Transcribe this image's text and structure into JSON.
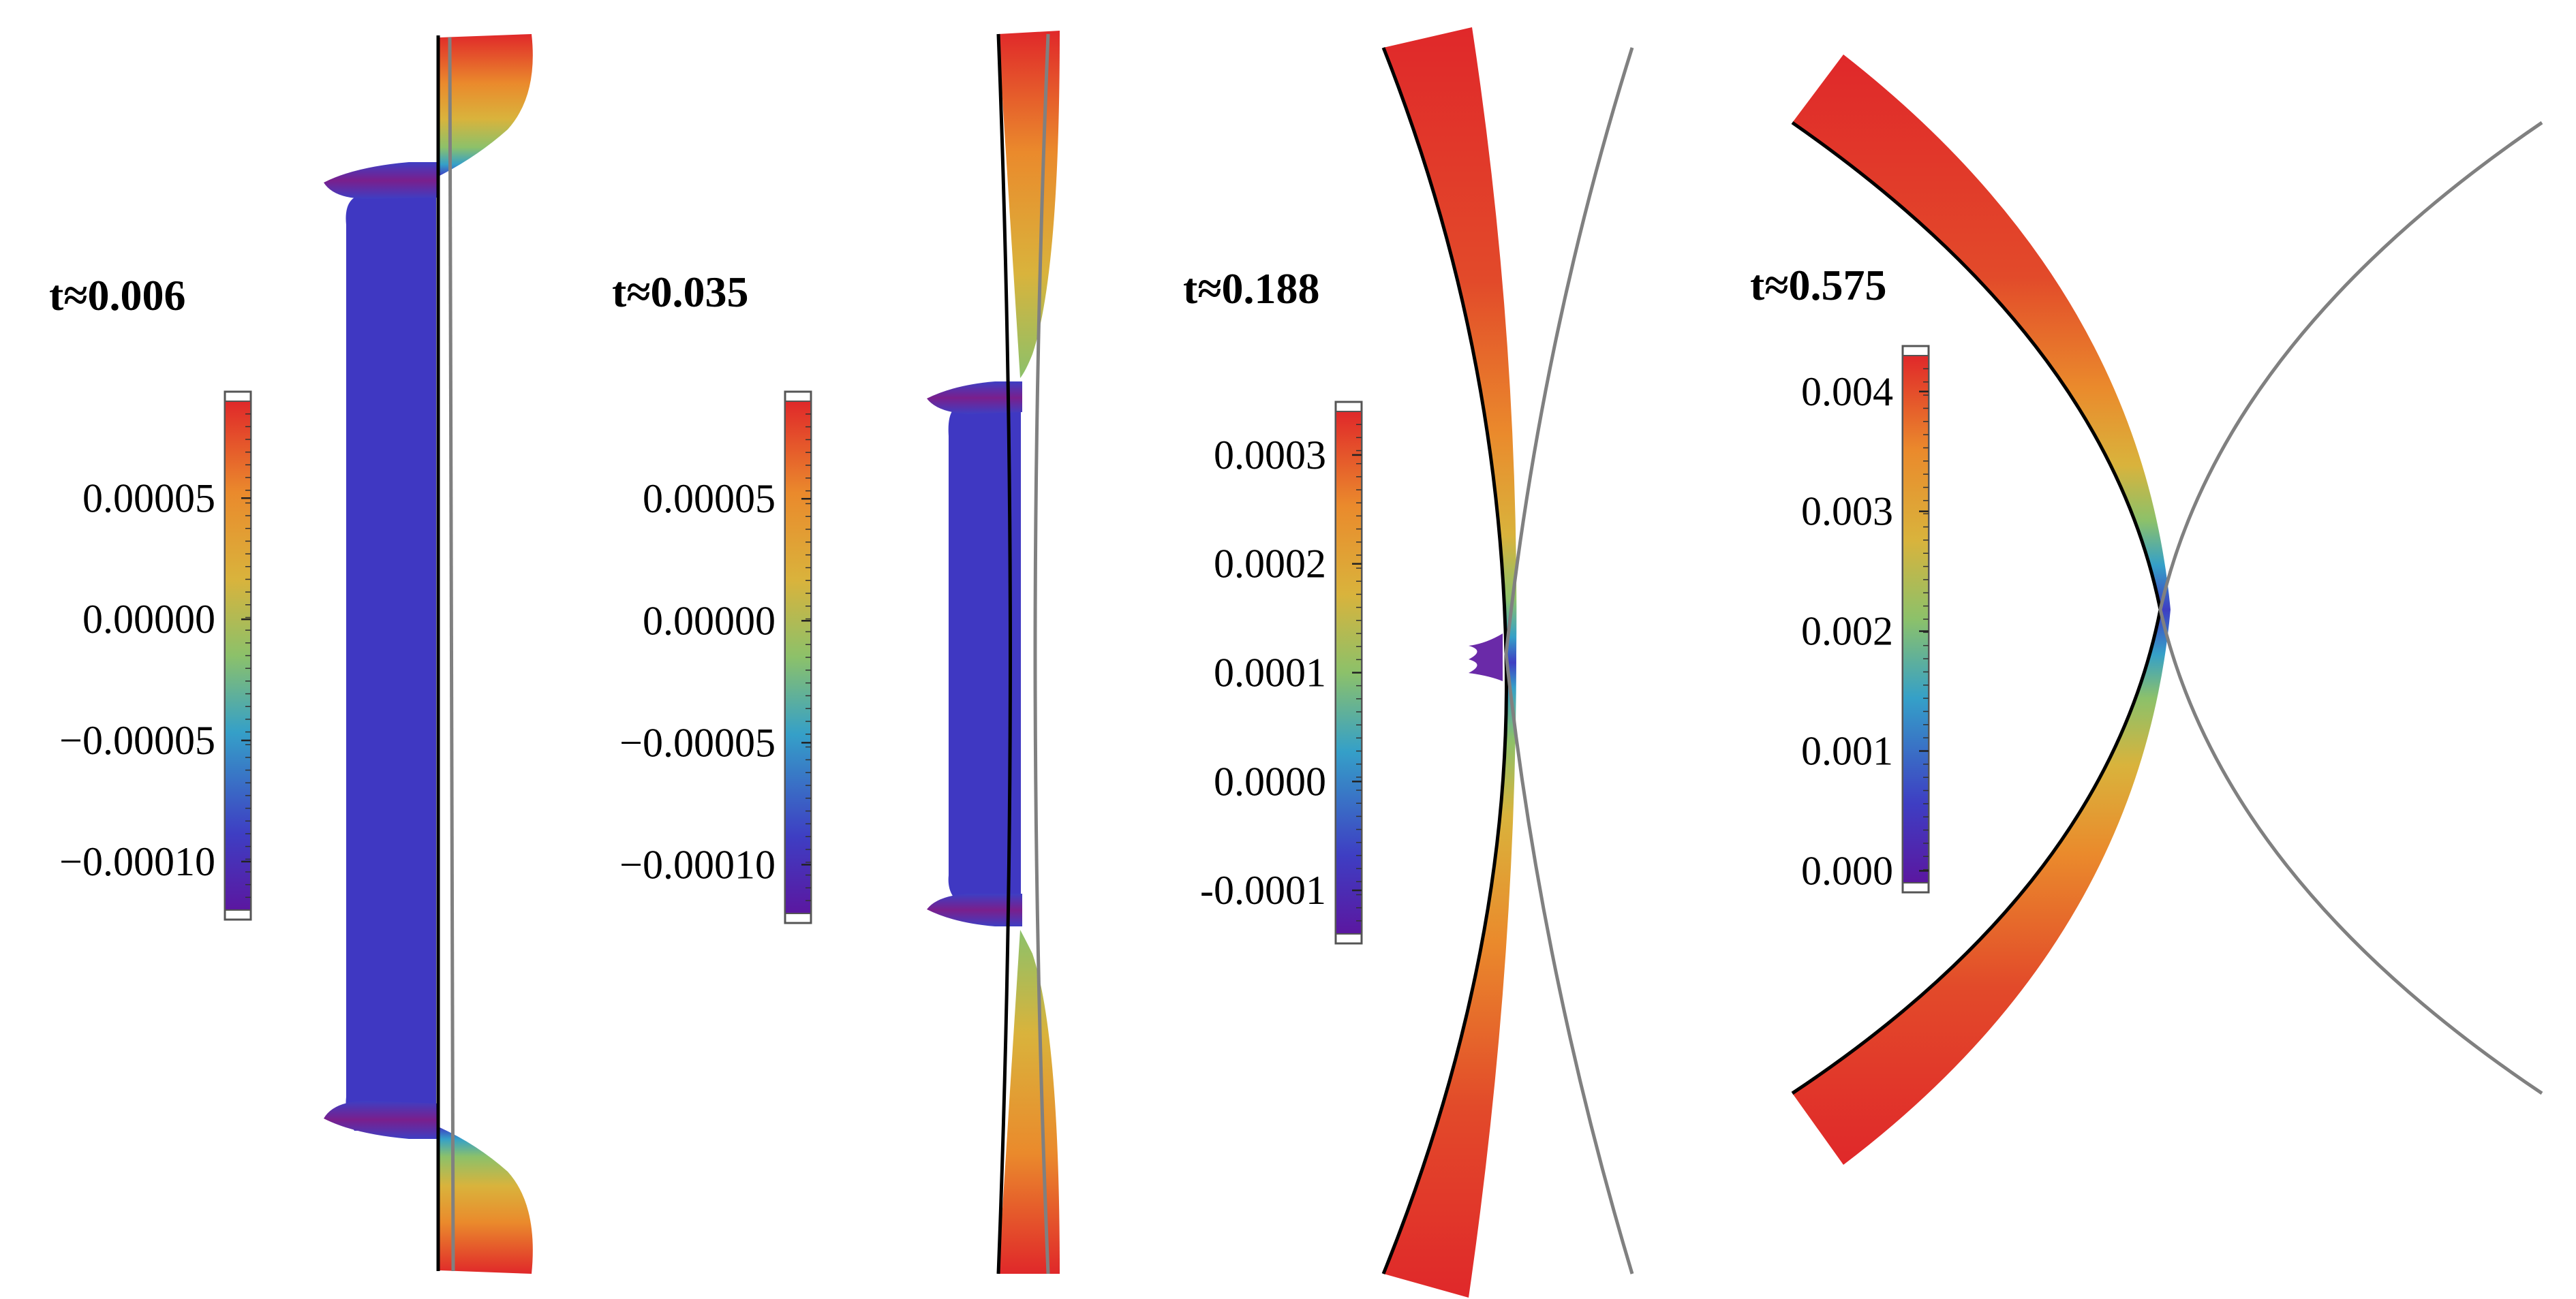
{
  "panels": [
    {
      "time_label": "t≈0.006",
      "colorbar": {
        "min": -0.00012,
        "max": 9e-05,
        "ticks": [
          {
            "value": 5e-05,
            "label": "0.00005"
          },
          {
            "value": 0.0,
            "label": "0.00000"
          },
          {
            "value": -5e-05,
            "label": "−0.00005"
          },
          {
            "value": -0.0001,
            "label": "−0.00010"
          }
        ]
      }
    },
    {
      "time_label": "t≈0.035",
      "colorbar": {
        "min": -0.00012,
        "max": 9e-05,
        "ticks": [
          {
            "value": 5e-05,
            "label": "0.00005"
          },
          {
            "value": 0.0,
            "label": "0.00000"
          },
          {
            "value": -5e-05,
            "label": "−0.00005"
          },
          {
            "value": -0.0001,
            "label": "−0.00010"
          }
        ]
      }
    },
    {
      "time_label": "t≈0.188",
      "colorbar": {
        "min": -0.00014,
        "max": 0.00034,
        "ticks": [
          {
            "value": 0.0003,
            "label": "0.0003"
          },
          {
            "value": 0.0002,
            "label": "0.0002"
          },
          {
            "value": 0.0001,
            "label": "0.0001"
          },
          {
            "value": 0.0,
            "label": "0.0000"
          },
          {
            "value": -0.0001,
            "label": "-0.0001"
          }
        ]
      }
    },
    {
      "time_label": "t≈0.575",
      "colorbar": {
        "min": -0.0001,
        "max": 0.0043,
        "ticks": [
          {
            "value": 0.004,
            "label": "0.004"
          },
          {
            "value": 0.003,
            "label": "0.003"
          },
          {
            "value": 0.002,
            "label": "0.002"
          },
          {
            "value": 0.001,
            "label": "0.001"
          },
          {
            "value": 0.0,
            "label": "0.000"
          }
        ]
      }
    }
  ],
  "colors": {
    "low": "#5b17a0",
    "blue": "#3e3ec3",
    "cyan": "#35a0c8",
    "green": "#8cc16a",
    "yellow": "#d9b33c",
    "orange": "#ea8a2c",
    "red": "#e0282a"
  }
}
